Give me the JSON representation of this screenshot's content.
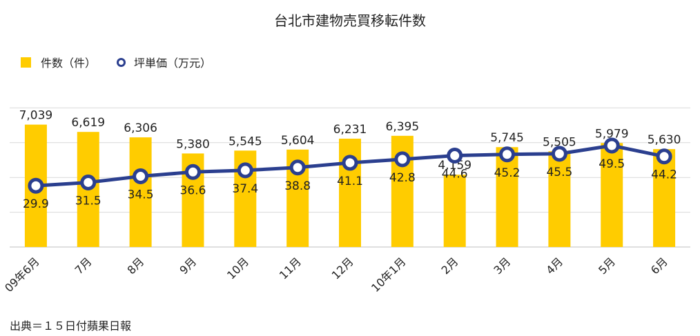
{
  "title": "台北市建物売買移転件数",
  "legend": {
    "bar_label": "件数（件）",
    "line_label": "坪単価（万元）"
  },
  "source": "出典＝１５日付蘋果日報",
  "colors": {
    "bar": "#FFCC00",
    "line": "#2B3F8F",
    "marker_fill": "#FFFFFF",
    "grid": "#D9D9D9"
  },
  "chart_data": {
    "type": "bar",
    "title": "台北市建物売買移転件数",
    "categories": [
      "09年6月",
      "7月",
      "8月",
      "9月",
      "10月",
      "11月",
      "12月",
      "10年1月",
      "2月",
      "3月",
      "4月",
      "5月",
      "6月"
    ],
    "series": [
      {
        "name": "件数（件）",
        "type": "bar",
        "axis": "left",
        "values": [
          7039,
          6619,
          6306,
          5380,
          5545,
          5604,
          6231,
          6395,
          4159,
          5745,
          5505,
          5979,
          5630
        ],
        "labels": [
          "7,039",
          "6,619",
          "6,306",
          "5,380",
          "5,545",
          "5,604",
          "6,231",
          "6,395",
          "4,159",
          "5,745",
          "5,505",
          "5,979",
          "5,630"
        ]
      },
      {
        "name": "坪単価（万元）",
        "type": "line",
        "axis": "right",
        "values": [
          29.9,
          31.5,
          34.5,
          36.6,
          37.4,
          38.8,
          41.1,
          42.8,
          44.6,
          45.2,
          45.5,
          49.5,
          44.2
        ],
        "labels": [
          "29.9",
          "31.5",
          "34.5",
          "36.6",
          "37.4",
          "38.8",
          "41.1",
          "42.8",
          "44.6",
          "45.2",
          "45.5",
          "49.5",
          "44.2"
        ]
      }
    ],
    "ylim_left": [
      0,
      8000
    ],
    "ylim_right": [
      0,
      100
    ],
    "grid": true,
    "legend_position": "top-left"
  }
}
